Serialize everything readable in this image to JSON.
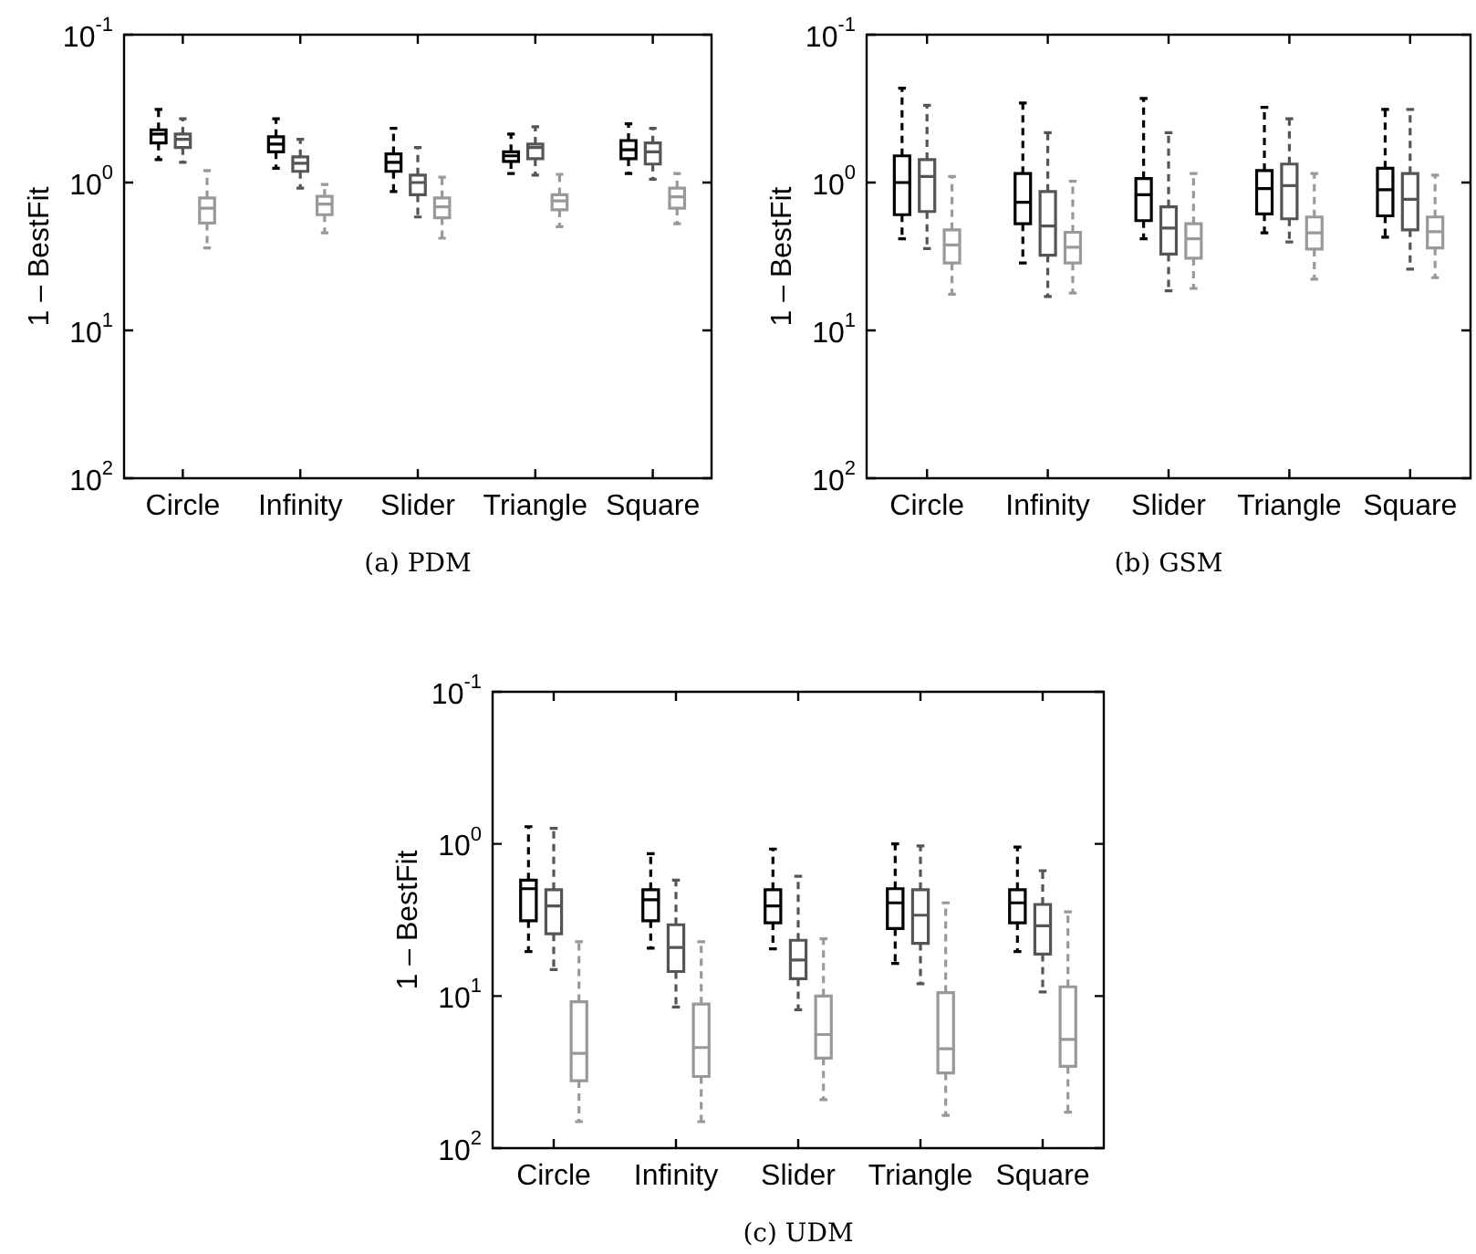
{
  "chart_data": [
    {
      "type": "box",
      "title": "(a) PDM",
      "ylabel": "1 – BestFit",
      "categories": [
        "Circle",
        "Infinity",
        "Slider",
        "Triangle",
        "Square"
      ],
      "log": true,
      "grid": false,
      "legend": false,
      "line_style": "dashed",
      "ylim": [
        100,
        0.1
      ],
      "yticks": [
        {
          "value": 0.1,
          "label": "10$^{-1}$"
        },
        {
          "value": 1,
          "label": "10$^{0}$"
        },
        {
          "value": 10,
          "label": "10$^{1}$"
        },
        {
          "value": 100,
          "label": "10$^{2}$"
        }
      ],
      "series": [
        {
          "color": "#000000",
          "boxes": [
            {
              "low": 0.32,
              "q1": 0.44,
              "median": 0.47,
              "q3": 0.54,
              "high": 0.7
            },
            {
              "low": 0.37,
              "q1": 0.49,
              "median": 0.55,
              "q3": 0.62,
              "high": 0.8
            },
            {
              "low": 0.43,
              "q1": 0.64,
              "median": 0.73,
              "q3": 0.84,
              "high": 1.15
            },
            {
              "low": 0.47,
              "q1": 0.62,
              "median": 0.66,
              "q3": 0.72,
              "high": 0.87
            },
            {
              "low": 0.4,
              "q1": 0.52,
              "median": 0.6,
              "q3": 0.69,
              "high": 0.87
            }
          ]
        },
        {
          "color": "#555555",
          "boxes": [
            {
              "low": 0.37,
              "q1": 0.47,
              "median": 0.51,
              "q3": 0.58,
              "high": 0.73
            },
            {
              "low": 0.51,
              "q1": 0.67,
              "median": 0.74,
              "q3": 0.84,
              "high": 1.09
            },
            {
              "low": 0.58,
              "q1": 0.89,
              "median": 1.0,
              "q3": 1.21,
              "high": 1.71
            },
            {
              "low": 0.42,
              "q1": 0.55,
              "median": 0.58,
              "q3": 0.69,
              "high": 0.89
            },
            {
              "low": 0.43,
              "q1": 0.54,
              "median": 0.62,
              "q3": 0.75,
              "high": 0.95
            }
          ]
        },
        {
          "color": "#999999",
          "boxes": [
            {
              "low": 0.83,
              "q1": 1.27,
              "median": 1.49,
              "q3": 1.88,
              "high": 2.77
            },
            {
              "low": 1.03,
              "q1": 1.24,
              "median": 1.4,
              "q3": 1.65,
              "high": 2.19
            },
            {
              "low": 0.92,
              "q1": 1.27,
              "median": 1.46,
              "q3": 1.73,
              "high": 2.38
            },
            {
              "low": 0.88,
              "q1": 1.21,
              "median": 1.33,
              "q3": 1.53,
              "high": 1.99
            },
            {
              "low": 0.87,
              "q1": 1.09,
              "median": 1.25,
              "q3": 1.49,
              "high": 1.9
            }
          ]
        }
      ]
    },
    {
      "type": "box",
      "title": "(b) GSM",
      "ylabel": "1 – BestFit",
      "categories": [
        "Circle",
        "Infinity",
        "Slider",
        "Triangle",
        "Square"
      ],
      "log": true,
      "grid": false,
      "legend": false,
      "line_style": "dashed",
      "ylim": [
        100,
        0.1
      ],
      "yticks": [
        {
          "value": 0.1,
          "label": "10$^{-1}$"
        },
        {
          "value": 1,
          "label": "10$^{0}$"
        },
        {
          "value": 10,
          "label": "10$^{1}$"
        },
        {
          "value": 100,
          "label": "10$^{2}$"
        }
      ],
      "series": [
        {
          "color": "#000000",
          "boxes": [
            {
              "low": 0.23,
              "q1": 0.66,
              "median": 1.0,
              "q3": 1.65,
              "high": 2.4
            },
            {
              "low": 0.29,
              "q1": 0.87,
              "median": 1.36,
              "q3": 1.9,
              "high": 3.5
            },
            {
              "low": 0.27,
              "q1": 0.94,
              "median": 1.21,
              "q3": 1.81,
              "high": 2.4
            },
            {
              "low": 0.31,
              "q1": 0.83,
              "median": 1.1,
              "q3": 1.63,
              "high": 2.19
            },
            {
              "low": 0.32,
              "q1": 0.8,
              "median": 1.12,
              "q3": 1.68,
              "high": 2.34
            }
          ]
        },
        {
          "color": "#555555",
          "boxes": [
            {
              "low": 0.3,
              "q1": 0.7,
              "median": 0.91,
              "q3": 1.57,
              "high": 2.8
            },
            {
              "low": 0.46,
              "q1": 1.15,
              "median": 1.97,
              "q3": 3.1,
              "high": 5.9
            },
            {
              "low": 0.46,
              "q1": 1.46,
              "median": 2.03,
              "q3": 3.05,
              "high": 5.4
            },
            {
              "low": 0.37,
              "q1": 0.75,
              "median": 1.05,
              "q3": 1.76,
              "high": 2.52
            },
            {
              "low": 0.32,
              "q1": 0.87,
              "median": 1.3,
              "q3": 2.09,
              "high": 3.85
            }
          ]
        },
        {
          "color": "#999999",
          "boxes": [
            {
              "low": 0.91,
              "q1": 2.09,
              "median": 2.64,
              "q3": 3.5,
              "high": 5.7
            },
            {
              "low": 0.98,
              "q1": 2.17,
              "median": 2.74,
              "q3": 3.5,
              "high": 5.6
            },
            {
              "low": 0.87,
              "q1": 1.9,
              "median": 2.4,
              "q3": 3.25,
              "high": 5.2
            },
            {
              "low": 0.87,
              "q1": 1.71,
              "median": 2.19,
              "q3": 2.82,
              "high": 4.5
            },
            {
              "low": 0.89,
              "q1": 1.71,
              "median": 2.15,
              "q3": 2.77,
              "high": 4.4
            }
          ]
        }
      ]
    },
    {
      "type": "box",
      "title": "(c) UDM",
      "ylabel": "1 – BestFit",
      "categories": [
        "Circle",
        "Infinity",
        "Slider",
        "Triangle",
        "Square"
      ],
      "log": true,
      "grid": false,
      "legend": false,
      "line_style": "dashed",
      "ylim": [
        100,
        0.1
      ],
      "yticks": [
        {
          "value": 0.1,
          "label": "10$^{-1}$"
        },
        {
          "value": 1,
          "label": "10$^{0}$"
        },
        {
          "value": 10,
          "label": "10$^{1}$"
        },
        {
          "value": 100,
          "label": "10$^{2}$"
        }
      ],
      "series": [
        {
          "color": "#000000",
          "boxes": [
            {
              "low": 0.77,
              "q1": 1.73,
              "median": 1.97,
              "q3": 3.2,
              "high": 5.1
            },
            {
              "low": 1.16,
              "q1": 2.0,
              "median": 2.33,
              "q3": 3.2,
              "high": 4.85
            },
            {
              "low": 1.08,
              "q1": 2.0,
              "median": 2.56,
              "q3": 3.3,
              "high": 4.9
            },
            {
              "low": 1.0,
              "q1": 1.97,
              "median": 2.44,
              "q3": 3.6,
              "high": 6.1
            },
            {
              "low": 1.05,
              "q1": 2.0,
              "median": 2.44,
              "q3": 3.3,
              "high": 5.1
            }
          ]
        },
        {
          "color": "#555555",
          "boxes": [
            {
              "low": 0.79,
              "q1": 2.0,
              "median": 2.56,
              "q3": 3.9,
              "high": 6.7
            },
            {
              "low": 1.73,
              "q1": 3.4,
              "median": 4.8,
              "q3": 6.9,
              "high": 11.8
            },
            {
              "low": 1.63,
              "q1": 4.3,
              "median": 5.8,
              "q3": 7.7,
              "high": 12.3
            },
            {
              "low": 1.03,
              "q1": 2.0,
              "median": 2.94,
              "q3": 4.5,
              "high": 8.3
            },
            {
              "low": 1.5,
              "q1": 2.5,
              "median": 3.45,
              "q3": 5.3,
              "high": 9.4
            }
          ]
        },
        {
          "color": "#999999",
          "boxes": [
            {
              "low": 4.4,
              "q1": 10.9,
              "median": 23.8,
              "q3": 36,
              "high": 67
            },
            {
              "low": 4.4,
              "q1": 11.3,
              "median": 21.8,
              "q3": 33.8,
              "high": 67
            },
            {
              "low": 4.2,
              "q1": 10,
              "median": 17.9,
              "q3": 25.6,
              "high": 48
            },
            {
              "low": 2.44,
              "q1": 9.5,
              "median": 22.2,
              "q3": 32,
              "high": 61
            },
            {
              "low": 2.8,
              "q1": 8.7,
              "median": 19.3,
              "q3": 29,
              "high": 58
            }
          ]
        }
      ]
    }
  ]
}
